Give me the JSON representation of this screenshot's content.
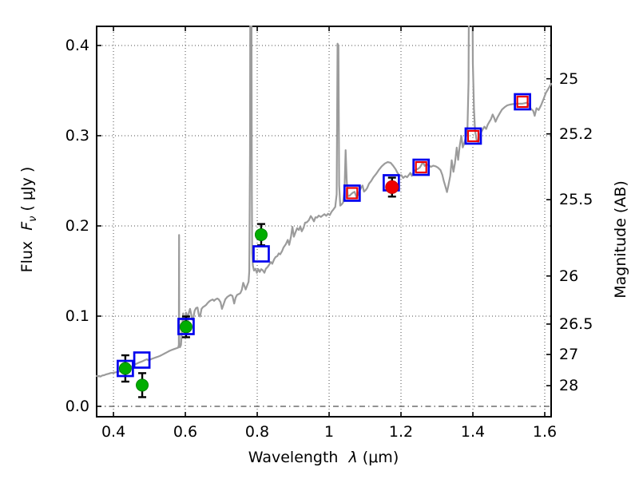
{
  "chart_data": {
    "type": "line+scatter",
    "title": "",
    "xlabel": {
      "prefix": "Wavelength ",
      "symbol": "λ",
      "suffix": " (μm)"
    },
    "ylabel_left": {
      "prefix": "Flux ",
      "symbol": "F",
      "subscript": "ν",
      "suffix": " ( μJy )"
    },
    "ylabel_right": "Magnitude (AB)",
    "xlim": [
      0.351,
      1.62
    ],
    "ylim": [
      -0.0124,
      0.4221
    ],
    "grid": true,
    "x_ticks": [
      {
        "value": 0.4,
        "label": "0.4"
      },
      {
        "value": 0.6,
        "label": "0.6"
      },
      {
        "value": 0.8,
        "label": "0.8"
      },
      {
        "value": 1.0,
        "label": "1"
      },
      {
        "value": 1.2,
        "label": "1.2"
      },
      {
        "value": 1.4,
        "label": "1.4"
      },
      {
        "value": 1.6,
        "label": "1.6"
      }
    ],
    "y_ticks_left": [
      {
        "value": 0.0,
        "label": "0.0"
      },
      {
        "value": 0.1,
        "label": "0.1"
      },
      {
        "value": 0.2,
        "label": "0.2"
      },
      {
        "value": 0.3,
        "label": "0.3"
      },
      {
        "value": 0.4,
        "label": "0.4"
      }
    ],
    "y_ticks_right": [
      {
        "flux": 0.3631,
        "label": "25"
      },
      {
        "flux": 0.302,
        "label": "25.2"
      },
      {
        "flux": 0.2291,
        "label": "25.5"
      },
      {
        "flux": 0.1445,
        "label": "26"
      },
      {
        "flux": 0.0912,
        "label": "26.5"
      },
      {
        "flux": 0.0575,
        "label": "27"
      },
      {
        "flux": 0.0229,
        "label": "28"
      }
    ],
    "zero_line_flux": 0.0,
    "spectrum": {
      "name": "model-spectrum",
      "color": "#9b9b9b",
      "points": [
        [
          0.351,
          0.034
        ],
        [
          0.356,
          0.0332
        ],
        [
          0.36,
          0.0338
        ],
        [
          0.364,
          0.033
        ],
        [
          0.369,
          0.0342
        ],
        [
          0.374,
          0.0345
        ],
        [
          0.38,
          0.0355
        ],
        [
          0.387,
          0.0362
        ],
        [
          0.393,
          0.037
        ],
        [
          0.4,
          0.0372
        ],
        [
          0.407,
          0.0378
        ],
        [
          0.413,
          0.0385
        ],
        [
          0.42,
          0.039
        ],
        [
          0.427,
          0.0398
        ],
        [
          0.433,
          0.0405
        ],
        [
          0.44,
          0.0415
        ],
        [
          0.447,
          0.0432
        ],
        [
          0.453,
          0.045
        ],
        [
          0.46,
          0.0465
        ],
        [
          0.467,
          0.0478
        ],
        [
          0.473,
          0.0488
        ],
        [
          0.48,
          0.0498
        ],
        [
          0.487,
          0.0512
        ],
        [
          0.493,
          0.0522
        ],
        [
          0.498,
          0.051
        ],
        [
          0.504,
          0.0522
        ],
        [
          0.509,
          0.053
        ],
        [
          0.516,
          0.054
        ],
        [
          0.522,
          0.0548
        ],
        [
          0.529,
          0.0558
        ],
        [
          0.536,
          0.0572
        ],
        [
          0.542,
          0.0585
        ],
        [
          0.549,
          0.06
        ],
        [
          0.556,
          0.0615
        ],
        [
          0.562,
          0.0625
        ],
        [
          0.569,
          0.0635
        ],
        [
          0.576,
          0.0645
        ],
        [
          0.58,
          0.065
        ],
        [
          0.582,
          0.068
        ],
        [
          0.5825,
          0.19
        ],
        [
          0.583,
          0.07
        ],
        [
          0.585,
          0.0655
        ],
        [
          0.588,
          0.068
        ],
        [
          0.59,
          0.08
        ],
        [
          0.592,
          0.095
        ],
        [
          0.594,
          0.103
        ],
        [
          0.596,
          0.09
        ],
        [
          0.598,
          0.087
        ],
        [
          0.6,
          0.099
        ],
        [
          0.602,
          0.104
        ],
        [
          0.605,
          0.101
        ],
        [
          0.607,
          0.095
        ],
        [
          0.61,
          0.104
        ],
        [
          0.613,
          0.108
        ],
        [
          0.616,
          0.103
        ],
        [
          0.619,
          0.096
        ],
        [
          0.622,
          0.0975
        ],
        [
          0.626,
          0.106
        ],
        [
          0.63,
          0.109
        ],
        [
          0.634,
          0.1095
        ],
        [
          0.637,
          0.102
        ],
        [
          0.641,
          0.0995
        ],
        [
          0.645,
          0.108
        ],
        [
          0.649,
          0.11
        ],
        [
          0.653,
          0.111
        ],
        [
          0.658,
          0.1125
        ],
        [
          0.662,
          0.1145
        ],
        [
          0.667,
          0.1165
        ],
        [
          0.671,
          0.1175
        ],
        [
          0.676,
          0.1185
        ],
        [
          0.68,
          0.117
        ],
        [
          0.684,
          0.1185
        ],
        [
          0.689,
          0.1195
        ],
        [
          0.693,
          0.1185
        ],
        [
          0.698,
          0.1155
        ],
        [
          0.702,
          0.108
        ],
        [
          0.706,
          0.1125
        ],
        [
          0.711,
          0.1185
        ],
        [
          0.716,
          0.121
        ],
        [
          0.721,
          0.1225
        ],
        [
          0.726,
          0.1235
        ],
        [
          0.731,
          0.1225
        ],
        [
          0.736,
          0.114
        ],
        [
          0.74,
          0.1205
        ],
        [
          0.744,
          0.1235
        ],
        [
          0.749,
          0.1245
        ],
        [
          0.753,
          0.1255
        ],
        [
          0.757,
          0.129
        ],
        [
          0.761,
          0.137
        ],
        [
          0.764,
          0.134
        ],
        [
          0.768,
          0.1295
        ],
        [
          0.772,
          0.134
        ],
        [
          0.776,
          0.138
        ],
        [
          0.778,
          0.15
        ],
        [
          0.78,
          0.28
        ],
        [
          0.781,
          0.55
        ],
        [
          0.7835,
          0.55
        ],
        [
          0.785,
          0.24
        ],
        [
          0.786,
          0.17
        ],
        [
          0.788,
          0.156
        ],
        [
          0.791,
          0.1505
        ],
        [
          0.795,
          0.1525
        ],
        [
          0.799,
          0.148
        ],
        [
          0.803,
          0.152
        ],
        [
          0.807,
          0.149
        ],
        [
          0.811,
          0.152
        ],
        [
          0.815,
          0.151
        ],
        [
          0.82,
          0.148
        ],
        [
          0.824,
          0.1525
        ],
        [
          0.829,
          0.1545
        ],
        [
          0.833,
          0.157
        ],
        [
          0.838,
          0.16
        ],
        [
          0.842,
          0.158
        ],
        [
          0.847,
          0.163
        ],
        [
          0.851,
          0.1655
        ],
        [
          0.856,
          0.1665
        ],
        [
          0.86,
          0.1695
        ],
        [
          0.864,
          0.1685
        ],
        [
          0.869,
          0.172
        ],
        [
          0.873,
          0.176
        ],
        [
          0.88,
          0.18
        ],
        [
          0.885,
          0.1845
        ],
        [
          0.889,
          0.179
        ],
        [
          0.894,
          0.188
        ],
        [
          0.898,
          0.199
        ],
        [
          0.902,
          0.188
        ],
        [
          0.907,
          0.1935
        ],
        [
          0.911,
          0.1975
        ],
        [
          0.916,
          0.1955
        ],
        [
          0.92,
          0.1995
        ],
        [
          0.924,
          0.194
        ],
        [
          0.929,
          0.198
        ],
        [
          0.933,
          0.2035
        ],
        [
          0.938,
          0.204
        ],
        [
          0.944,
          0.2065
        ],
        [
          0.949,
          0.211
        ],
        [
          0.953,
          0.2085
        ],
        [
          0.958,
          0.205
        ],
        [
          0.962,
          0.2095
        ],
        [
          0.967,
          0.2093
        ],
        [
          0.971,
          0.2115
        ],
        [
          0.977,
          0.21
        ],
        [
          0.982,
          0.2115
        ],
        [
          0.987,
          0.213
        ],
        [
          0.992,
          0.2112
        ],
        [
          0.997,
          0.2135
        ],
        [
          1.002,
          0.212
        ],
        [
          1.007,
          0.2158
        ],
        [
          1.012,
          0.2182
        ],
        [
          1.017,
          0.221
        ],
        [
          1.021,
          0.235
        ],
        [
          1.0235,
          0.402
        ],
        [
          1.026,
          0.4
        ],
        [
          1.028,
          0.245
        ],
        [
          1.031,
          0.2225
        ],
        [
          1.035,
          0.224
        ],
        [
          1.039,
          0.226
        ],
        [
          1.043,
          0.242
        ],
        [
          1.046,
          0.284
        ],
        [
          1.049,
          0.25
        ],
        [
          1.052,
          0.233
        ],
        [
          1.057,
          0.2335
        ],
        [
          1.062,
          0.2355
        ],
        [
          1.066,
          0.2368
        ],
        [
          1.071,
          0.2378
        ],
        [
          1.076,
          0.232
        ],
        [
          1.08,
          0.2338
        ],
        [
          1.084,
          0.238
        ],
        [
          1.089,
          0.2423
        ],
        [
          1.093,
          0.2448
        ],
        [
          1.097,
          0.238
        ],
        [
          1.102,
          0.2398
        ],
        [
          1.106,
          0.242
        ],
        [
          1.111,
          0.2468
        ],
        [
          1.117,
          0.2498
        ],
        [
          1.123,
          0.2538
        ],
        [
          1.131,
          0.2578
        ],
        [
          1.138,
          0.2618
        ],
        [
          1.146,
          0.2658
        ],
        [
          1.155,
          0.2692
        ],
        [
          1.163,
          0.2708
        ],
        [
          1.171,
          0.27
        ],
        [
          1.178,
          0.2668
        ],
        [
          1.185,
          0.2628
        ],
        [
          1.19,
          0.259
        ],
        [
          1.196,
          0.2558
        ],
        [
          1.201,
          0.2562
        ],
        [
          1.206,
          0.2532
        ],
        [
          1.212,
          0.2552
        ],
        [
          1.217,
          0.254
        ],
        [
          1.222,
          0.2565
        ],
        [
          1.226,
          0.2588
        ],
        [
          1.23,
          0.2555
        ],
        [
          1.235,
          0.2598
        ],
        [
          1.241,
          0.2622
        ],
        [
          1.246,
          0.263
        ],
        [
          1.252,
          0.2645
        ],
        [
          1.257,
          0.2678
        ],
        [
          1.261,
          0.2708
        ],
        [
          1.266,
          0.2665
        ],
        [
          1.271,
          0.2682
        ],
        [
          1.277,
          0.2672
        ],
        [
          1.283,
          0.2655
        ],
        [
          1.29,
          0.2668
        ],
        [
          1.297,
          0.266
        ],
        [
          1.303,
          0.2645
        ],
        [
          1.31,
          0.2618
        ],
        [
          1.315,
          0.2565
        ],
        [
          1.319,
          0.2498
        ],
        [
          1.323,
          0.2445
        ],
        [
          1.328,
          0.2375
        ],
        [
          1.332,
          0.245
        ],
        [
          1.337,
          0.2555
        ],
        [
          1.341,
          0.2728
        ],
        [
          1.346,
          0.26
        ],
        [
          1.35,
          0.2692
        ],
        [
          1.355,
          0.2868
        ],
        [
          1.359,
          0.2732
        ],
        [
          1.363,
          0.2878
        ],
        [
          1.368,
          0.2998
        ],
        [
          1.372,
          0.287
        ],
        [
          1.377,
          0.293
        ],
        [
          1.381,
          0.2998
        ],
        [
          1.385,
          0.31
        ],
        [
          1.388,
          0.36
        ],
        [
          1.39,
          0.55
        ],
        [
          1.3975,
          0.55
        ],
        [
          1.4,
          0.38
        ],
        [
          1.403,
          0.33
        ],
        [
          1.406,
          0.306
        ],
        [
          1.41,
          0.296
        ],
        [
          1.415,
          0.293
        ],
        [
          1.419,
          0.301
        ],
        [
          1.426,
          0.306
        ],
        [
          1.432,
          0.31
        ],
        [
          1.437,
          0.3075
        ],
        [
          1.441,
          0.312
        ],
        [
          1.446,
          0.3155
        ],
        [
          1.45,
          0.318
        ],
        [
          1.455,
          0.3235
        ],
        [
          1.459,
          0.32
        ],
        [
          1.463,
          0.3155
        ],
        [
          1.468,
          0.32
        ],
        [
          1.475,
          0.325
        ],
        [
          1.481,
          0.329
        ],
        [
          1.488,
          0.3315
        ],
        [
          1.495,
          0.3335
        ],
        [
          1.503,
          0.3345
        ],
        [
          1.512,
          0.335
        ],
        [
          1.523,
          0.3355
        ],
        [
          1.537,
          0.3355
        ],
        [
          1.55,
          0.3365
        ],
        [
          1.555,
          0.335
        ],
        [
          1.561,
          0.33
        ],
        [
          1.568,
          0.3275
        ],
        [
          1.572,
          0.322
        ],
        [
          1.577,
          0.3305
        ],
        [
          1.583,
          0.3285
        ],
        [
          1.59,
          0.334
        ],
        [
          1.597,
          0.341
        ],
        [
          1.603,
          0.3475
        ],
        [
          1.61,
          0.352
        ],
        [
          1.617,
          0.357
        ],
        [
          1.62,
          0.358
        ]
      ]
    },
    "series": [
      {
        "name": "green-photometry-circles",
        "marker": "circle-filled",
        "fill": "#00ad00",
        "edge": "#008500",
        "error_color": "#000000",
        "points": [
          {
            "x": 0.433,
            "y": 0.042,
            "yerr": 0.0146
          },
          {
            "x": 0.48,
            "y": 0.0235,
            "yerr": 0.0133
          },
          {
            "x": 0.602,
            "y": 0.0881,
            "yerr": 0.0115
          },
          {
            "x": 0.811,
            "y": 0.1903,
            "yerr": 0.0118
          }
        ]
      },
      {
        "name": "blue-open-squares",
        "marker": "square-open",
        "edge": "#0202ee",
        "points": [
          {
            "x": 0.433,
            "y": 0.042
          },
          {
            "x": 0.479,
            "y": 0.0513
          },
          {
            "x": 0.602,
            "y": 0.0885
          },
          {
            "x": 0.811,
            "y": 0.169
          },
          {
            "x": 1.064,
            "y": 0.2363
          },
          {
            "x": 1.173,
            "y": 0.2478
          },
          {
            "x": 1.256,
            "y": 0.265
          },
          {
            "x": 1.401,
            "y": 0.2996
          },
          {
            "x": 1.538,
            "y": 0.3376
          }
        ]
      },
      {
        "name": "red-open-squares",
        "marker": "square-open",
        "edge": "#ee0000",
        "points": [
          {
            "x": 1.064,
            "y": 0.2363
          },
          {
            "x": 1.256,
            "y": 0.265
          },
          {
            "x": 1.401,
            "y": 0.2996
          },
          {
            "x": 1.538,
            "y": 0.3376
          }
        ]
      },
      {
        "name": "red-photometry-circle",
        "marker": "circle-filled",
        "fill": "#ee0000",
        "edge": "#cc0000",
        "error_color": "#000000",
        "points": [
          {
            "x": 1.175,
            "y": 0.243,
            "yerr": 0.0105
          }
        ]
      }
    ],
    "frame_color": "#000000",
    "grid_color": "#4d4d4d"
  }
}
